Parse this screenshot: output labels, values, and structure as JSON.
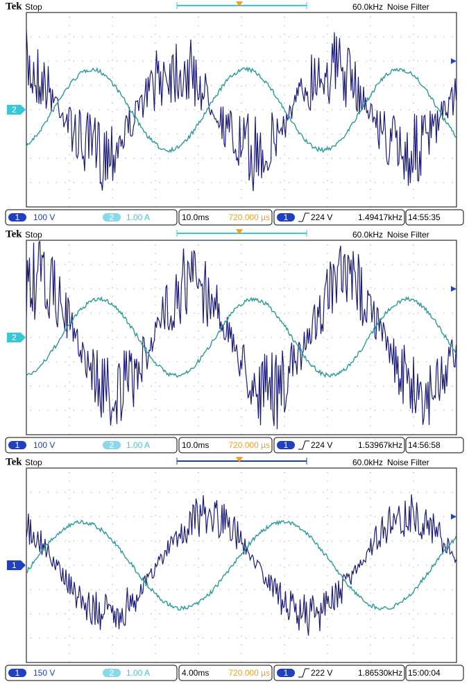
{
  "panels": [
    {
      "header": {
        "brand": "Tek",
        "state": "Stop",
        "sample_rate": "60.0kHz",
        "mode": "Noise Filter"
      },
      "ground_marker": "2",
      "footer": {
        "ch1_label": "1",
        "ch1_scale": "100 V",
        "ch2_label": "2",
        "ch2_scale": "1.00 A",
        "timebase": "10.0ms",
        "position": "720.000 µs",
        "trigger_channel": "1",
        "trigger_level": "224 V",
        "frequency": "1.49417kHz",
        "time": "14:55:35"
      }
    },
    {
      "header": {
        "brand": "Tek",
        "state": "Stop",
        "sample_rate": "60.0kHz",
        "mode": "Noise Filter"
      },
      "ground_marker": "2",
      "footer": {
        "ch1_label": "1",
        "ch1_scale": "100 V",
        "ch2_label": "2",
        "ch2_scale": "1.00 A",
        "timebase": "10.0ms",
        "position": "720.000 µs",
        "trigger_channel": "1",
        "trigger_level": "224 V",
        "frequency": "1.53967kHz",
        "time": "14:56:58"
      }
    },
    {
      "header": {
        "brand": "Tek",
        "state": "Stop",
        "sample_rate": "60.0kHz",
        "mode": "Noise Filter"
      },
      "ground_marker": "1",
      "footer": {
        "ch1_label": "1",
        "ch1_scale": "150 V",
        "ch2_label": "2",
        "ch2_scale": "1.00 A",
        "timebase": "4.00ms",
        "position": "720.000 µs",
        "trigger_channel": "1",
        "trigger_level": "222 V",
        "frequency": "1.86530kHz",
        "time": "15:00:04"
      }
    }
  ]
}
